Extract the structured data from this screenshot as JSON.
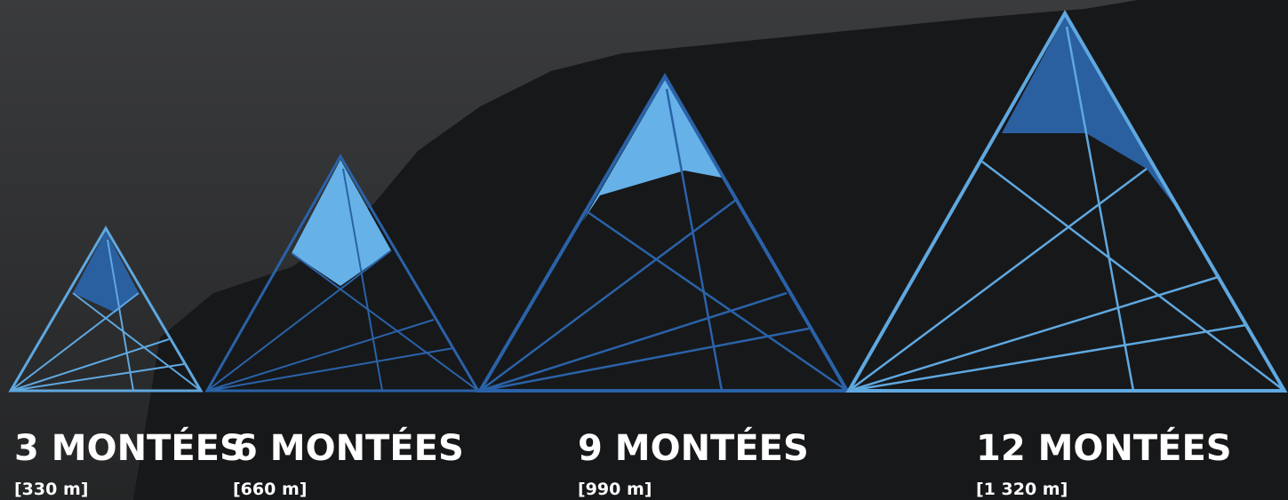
{
  "items": [
    {
      "title": "3 MONTÉES",
      "subtitle": "[330 m]"
    },
    {
      "title": "6 MONTÉES",
      "subtitle": "[660 m]"
    },
    {
      "title": "9 MONTÉES",
      "subtitle": "[990 m]"
    },
    {
      "title": "12 MONTÉES",
      "subtitle": "[1 320 m]"
    }
  ]
}
